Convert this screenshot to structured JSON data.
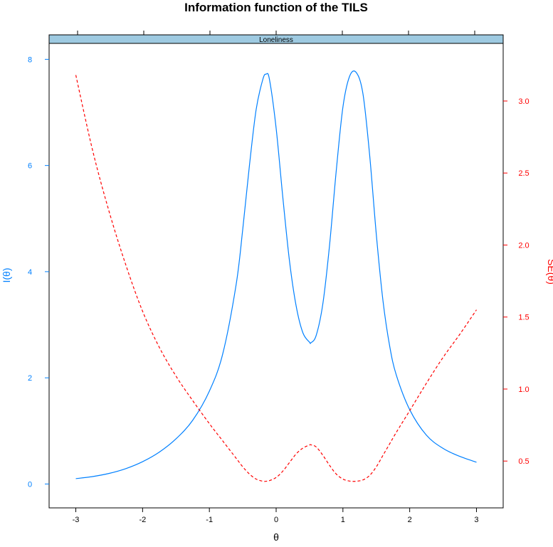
{
  "colors": {
    "information": "#0080ff",
    "standard_error": "#ff0000",
    "strip": "#9ecae1",
    "frame": "#000000"
  },
  "chart_data": {
    "type": "line",
    "title": "Information function of the TILS",
    "panel_label": "Loneliness",
    "xlabel": "θ",
    "ylabel_left": "I(θ)",
    "ylabel_right": "SE(θ)",
    "xlim": [
      -3.4,
      3.4
    ],
    "ylim_left": [
      -0.45,
      8.3
    ],
    "ylim_right": [
      0.175,
      3.4
    ],
    "x_ticks": [
      -3,
      -2,
      -1,
      0,
      1,
      2,
      3
    ],
    "x_tick_labels": [
      "-3",
      "-2",
      "-1",
      "0",
      "1",
      "2",
      "3"
    ],
    "y_left_ticks": [
      0,
      2,
      4,
      6,
      8
    ],
    "y_left_tick_labels": [
      "0",
      "2",
      "4",
      "6",
      "8"
    ],
    "y_right_ticks": [
      0.5,
      1.0,
      1.5,
      2.0,
      2.5,
      3.0
    ],
    "y_right_tick_labels": [
      "0.5",
      "1.0",
      "1.5",
      "2.0",
      "2.5",
      "3.0"
    ],
    "grid": false,
    "series": [
      {
        "axis": "left",
        "style": "solid",
        "x": [
          -3.0,
          -2.75,
          -2.5,
          -2.25,
          -2.0,
          -1.75,
          -1.5,
          -1.25,
          -1.0,
          -0.8,
          -0.6,
          -0.5,
          -0.4,
          -0.3,
          -0.2,
          -0.15,
          -0.1,
          0.0,
          0.1,
          0.2,
          0.3,
          0.4,
          0.5,
          0.52,
          0.6,
          0.7,
          0.8,
          0.9,
          1.0,
          1.1,
          1.2,
          1.3,
          1.4,
          1.5,
          1.6,
          1.7,
          1.8,
          2.0,
          2.25,
          2.5,
          2.75,
          3.0
        ],
        "values": [
          0.1,
          0.14,
          0.2,
          0.29,
          0.42,
          0.6,
          0.85,
          1.2,
          1.75,
          2.45,
          3.75,
          4.8,
          6.0,
          7.05,
          7.62,
          7.72,
          7.62,
          6.7,
          5.4,
          4.2,
          3.35,
          2.85,
          2.67,
          2.66,
          2.8,
          3.4,
          4.5,
          5.9,
          7.1,
          7.68,
          7.75,
          7.35,
          6.2,
          4.7,
          3.45,
          2.6,
          2.05,
          1.4,
          0.92,
          0.67,
          0.52,
          0.41
        ]
      },
      {
        "axis": "right",
        "style": "dashed",
        "x": [
          -3.0,
          -2.75,
          -2.5,
          -2.25,
          -2.0,
          -1.75,
          -1.5,
          -1.25,
          -1.0,
          -0.8,
          -0.6,
          -0.5,
          -0.4,
          -0.3,
          -0.2,
          -0.15,
          -0.1,
          0.0,
          0.1,
          0.2,
          0.3,
          0.4,
          0.5,
          0.52,
          0.6,
          0.7,
          0.8,
          0.9,
          1.0,
          1.1,
          1.2,
          1.3,
          1.4,
          1.5,
          1.6,
          1.7,
          1.8,
          2.0,
          2.25,
          2.5,
          2.75,
          3.0
        ],
        "values": [
          3.18,
          2.66,
          2.23,
          1.86,
          1.54,
          1.29,
          1.09,
          0.92,
          0.76,
          0.64,
          0.52,
          0.46,
          0.41,
          0.375,
          0.36,
          0.36,
          0.364,
          0.386,
          0.43,
          0.49,
          0.55,
          0.59,
          0.612,
          0.613,
          0.598,
          0.54,
          0.47,
          0.41,
          0.375,
          0.361,
          0.36,
          0.369,
          0.4,
          0.46,
          0.54,
          0.62,
          0.7,
          0.85,
          1.04,
          1.22,
          1.38,
          1.55
        ]
      }
    ]
  }
}
